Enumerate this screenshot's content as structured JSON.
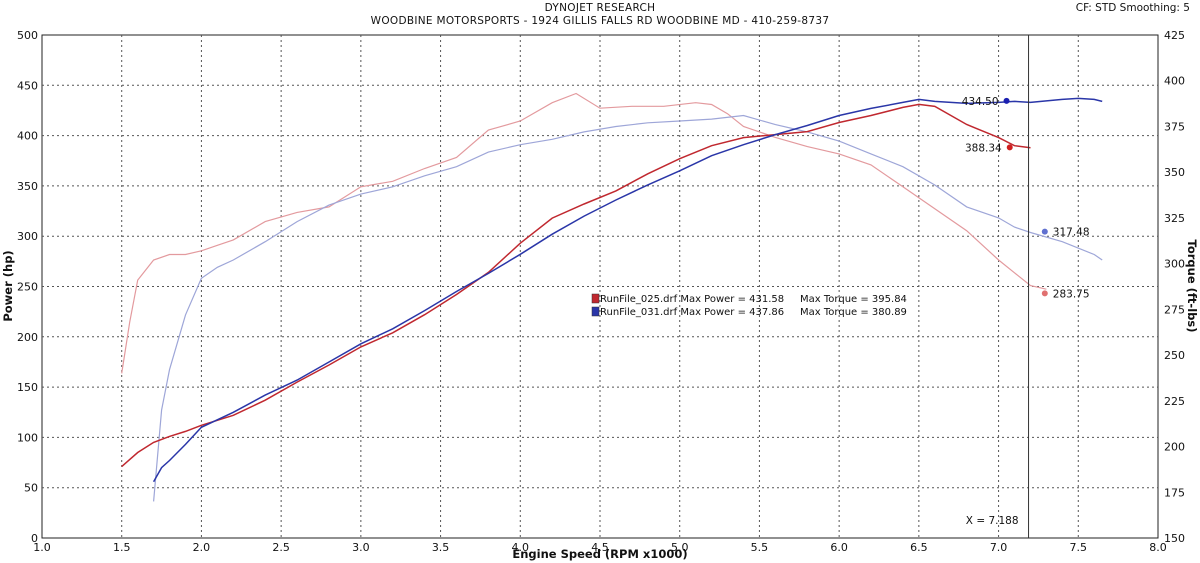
{
  "header": {
    "title": "DYNOJET RESEARCH",
    "subtitle": "WOODBINE MOTORSPORTS - 1924 GILLIS FALLS RD WOODBINE MD - 410-259-8737",
    "settings": "CF: STD  Smoothing: 5"
  },
  "chart_data": {
    "type": "line",
    "title": "DYNOJET RESEARCH",
    "xlabel": "Engine Speed (RPM x1000)",
    "ylabel": "Power (hp)",
    "y2label": "Torque (ft-lbs)",
    "xlim": [
      1.0,
      8.0
    ],
    "ylim": [
      0,
      500
    ],
    "y2lim": [
      150,
      425
    ],
    "xticks": [
      "1.0",
      "1.5",
      "2.0",
      "2.5",
      "3.0",
      "3.5",
      "4.0",
      "4.5",
      "5.0",
      "5.5",
      "6.0",
      "6.5",
      "7.0",
      "7.5",
      "8.0"
    ],
    "yticks": [
      "0",
      "50",
      "100",
      "150",
      "200",
      "250",
      "300",
      "350",
      "400",
      "450",
      "500"
    ],
    "y2ticks": [
      "150",
      "175",
      "200",
      "225",
      "250",
      "275",
      "300",
      "325",
      "350",
      "375",
      "400",
      "425"
    ],
    "grid": true,
    "cursor": {
      "x": 7.188,
      "label": "X = 7.188"
    },
    "series": [
      {
        "name": "RunFile_025.drf",
        "quantity": "Power",
        "axis": "left",
        "color": "#c0282f",
        "x": [
          1.5,
          1.6,
          1.7,
          1.8,
          1.9,
          2.0,
          2.2,
          2.4,
          2.6,
          2.8,
          3.0,
          3.2,
          3.4,
          3.6,
          3.8,
          4.0,
          4.2,
          4.4,
          4.6,
          4.8,
          5.0,
          5.2,
          5.4,
          5.6,
          5.8,
          6.0,
          6.2,
          6.4,
          6.5,
          6.6,
          6.8,
          7.0,
          7.1,
          7.2
        ],
        "y": [
          71,
          85,
          95,
          101,
          106,
          112,
          122,
          137,
          155,
          172,
          190,
          204,
          222,
          242,
          264,
          293,
          318,
          332,
          345,
          362,
          377,
          390,
          398,
          401,
          404,
          413,
          420,
          428,
          431,
          429,
          411,
          398,
          390,
          388
        ]
      },
      {
        "name": "RunFile_031.drf",
        "quantity": "Power",
        "axis": "left",
        "color": "#2a36a8",
        "x": [
          1.7,
          1.75,
          1.8,
          1.9,
          2.0,
          2.2,
          2.4,
          2.6,
          2.8,
          3.0,
          3.2,
          3.4,
          3.6,
          3.8,
          4.0,
          4.2,
          4.4,
          4.6,
          4.8,
          5.0,
          5.2,
          5.4,
          5.6,
          5.8,
          6.0,
          6.2,
          6.4,
          6.5,
          6.6,
          6.8,
          7.0,
          7.1,
          7.2,
          7.4,
          7.5,
          7.6,
          7.65
        ],
        "y": [
          56,
          70,
          77,
          93,
          110,
          125,
          142,
          157,
          175,
          193,
          208,
          226,
          245,
          263,
          282,
          302,
          320,
          336,
          351,
          365,
          380,
          391,
          401,
          410,
          420,
          427,
          433,
          436,
          434,
          432,
          433,
          434,
          433,
          436,
          437,
          436,
          434
        ]
      },
      {
        "name": "RunFile_025.drf",
        "quantity": "Torque",
        "axis": "right",
        "color": "#e39a9e",
        "x": [
          1.5,
          1.55,
          1.6,
          1.7,
          1.8,
          1.9,
          2.0,
          2.1,
          2.2,
          2.4,
          2.6,
          2.8,
          3.0,
          3.2,
          3.4,
          3.6,
          3.8,
          4.0,
          4.2,
          4.35,
          4.5,
          4.7,
          4.9,
          5.1,
          5.2,
          5.3,
          5.4,
          5.6,
          5.8,
          6.0,
          6.2,
          6.4,
          6.6,
          6.8,
          7.0,
          7.1,
          7.2,
          7.3
        ],
        "y": [
          240,
          268,
          291,
          302,
          305,
          305,
          307,
          310,
          313,
          323,
          328,
          331,
          342,
          345,
          352,
          358,
          373,
          378,
          388,
          393,
          385,
          386,
          386,
          388,
          387,
          382,
          375,
          369,
          364,
          360,
          354,
          342,
          330,
          318,
          302,
          295,
          288,
          286
        ]
      },
      {
        "name": "RunFile_031.drf",
        "quantity": "Torque",
        "axis": "right",
        "color": "#9ea6d8",
        "x": [
          1.7,
          1.75,
          1.8,
          1.9,
          2.0,
          2.1,
          2.2,
          2.4,
          2.6,
          2.8,
          3.0,
          3.2,
          3.4,
          3.6,
          3.8,
          4.0,
          4.2,
          4.4,
          4.6,
          4.8,
          5.0,
          5.2,
          5.4,
          5.6,
          5.8,
          6.0,
          6.2,
          6.4,
          6.6,
          6.8,
          7.0,
          7.1,
          7.2,
          7.4,
          7.6,
          7.65
        ],
        "y": [
          170,
          220,
          242,
          272,
          292,
          298,
          302,
          312,
          323,
          332,
          338,
          342,
          348,
          353,
          361,
          365,
          368,
          372,
          375,
          377,
          378,
          379,
          381,
          376,
          372,
          367,
          360,
          353,
          343,
          331,
          325,
          320,
          317,
          312,
          305,
          302
        ]
      }
    ],
    "markers": [
      {
        "x": 7.05,
        "y": 434.5,
        "axis": "left",
        "label": "434.50",
        "color": "#1a1fb0"
      },
      {
        "x": 7.07,
        "y": 388.34,
        "axis": "left",
        "label": "388.34",
        "color": "#d02020"
      },
      {
        "x": 7.29,
        "y": 317.48,
        "axis": "right",
        "label": "317.48",
        "color": "#6070d0"
      },
      {
        "x": 7.29,
        "y": 283.75,
        "axis": "right",
        "label": "283.75",
        "color": "#e07070"
      }
    ],
    "legend": {
      "placement": "center",
      "entries": [
        {
          "color": "#c0282f",
          "text": "RunFile_025.drf Max Power = 431.58     Max Torque = 395.84"
        },
        {
          "color": "#2a36a8",
          "text": "RunFile_031.drf Max Power = 437.86     Max Torque = 380.89"
        }
      ]
    }
  }
}
